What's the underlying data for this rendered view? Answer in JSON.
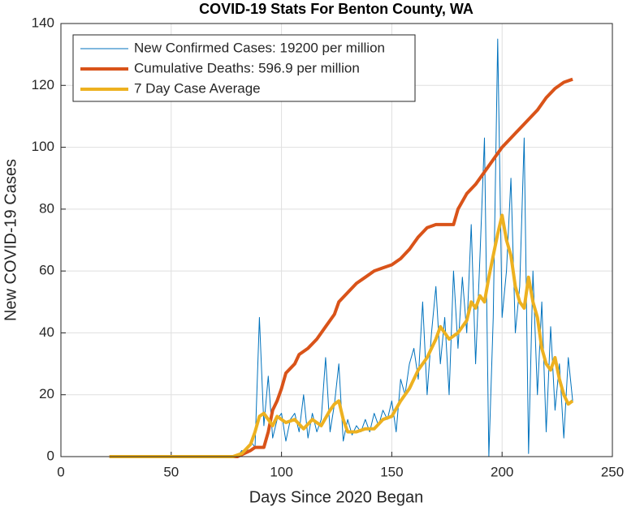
{
  "chart_data": {
    "type": "line",
    "title": "COVID-19 Stats For Benton County, WA",
    "xlabel": "Days Since 2020 Began",
    "ylabel": "New COVID-19 Cases",
    "xlim": [
      0,
      250
    ],
    "xticks": [
      0,
      50,
      100,
      150,
      200,
      250
    ],
    "ylim": [
      0,
      140
    ],
    "yticks": [
      0,
      20,
      40,
      60,
      80,
      100,
      120,
      140
    ],
    "grid": true,
    "legend": "northwest",
    "series": [
      {
        "name": "New Confirmed Cases: 19200 per million",
        "color": "#0072bd",
        "linewidth": 1,
        "x": [
          22,
          80,
          82,
          84,
          86,
          88,
          90,
          92,
          94,
          96,
          98,
          100,
          102,
          104,
          106,
          108,
          110,
          112,
          114,
          116,
          118,
          120,
          122,
          124,
          126,
          128,
          130,
          132,
          134,
          136,
          138,
          140,
          142,
          144,
          146,
          148,
          150,
          152,
          154,
          156,
          158,
          160,
          162,
          164,
          166,
          168,
          170,
          172,
          174,
          176,
          178,
          180,
          182,
          184,
          186,
          188,
          190,
          192,
          194,
          196,
          198,
          200,
          202,
          204,
          206,
          208,
          210,
          212,
          214,
          216,
          218,
          220,
          222,
          224,
          226,
          228,
          230,
          232
        ],
        "values": [
          0,
          0,
          2,
          1,
          5,
          3,
          45,
          10,
          26,
          6,
          12,
          14,
          5,
          12,
          14,
          8,
          20,
          6,
          14,
          8,
          12,
          32,
          8,
          17,
          30,
          5,
          12,
          7,
          10,
          8,
          12,
          8,
          14,
          10,
          15,
          12,
          18,
          8,
          25,
          20,
          30,
          35,
          25,
          50,
          20,
          40,
          55,
          30,
          45,
          20,
          60,
          35,
          58,
          40,
          75,
          30,
          65,
          103,
          0,
          45,
          135,
          45,
          60,
          90,
          40,
          55,
          103,
          1,
          60,
          20,
          50,
          8,
          42,
          15,
          30,
          6,
          32,
          18
        ]
      },
      {
        "name": "Cumulative Deaths: 596.9 per million",
        "color": "#d95319",
        "linewidth": 4,
        "x": [
          22,
          80,
          86,
          88,
          92,
          94,
          96,
          98,
          100,
          102,
          106,
          108,
          112,
          116,
          120,
          124,
          126,
          130,
          134,
          138,
          142,
          146,
          150,
          154,
          158,
          162,
          166,
          170,
          174,
          178,
          180,
          184,
          188,
          192,
          196,
          200,
          204,
          208,
          212,
          216,
          220,
          224,
          228,
          232
        ],
        "values": [
          0,
          0,
          2,
          3,
          3,
          8,
          15,
          18,
          22,
          27,
          30,
          33,
          35,
          38,
          42,
          46,
          50,
          53,
          56,
          58,
          60,
          61,
          62,
          64,
          67,
          71,
          74,
          75,
          75,
          75,
          80,
          85,
          88,
          92,
          96,
          100,
          103,
          106,
          109,
          112,
          116,
          119,
          121,
          122
        ]
      },
      {
        "name": "7 Day Case Average",
        "color": "#edb120",
        "linewidth": 4,
        "x": [
          22,
          78,
          82,
          86,
          88,
          90,
          92,
          94,
          96,
          98,
          100,
          102,
          106,
          110,
          114,
          118,
          122,
          124,
          126,
          128,
          130,
          134,
          138,
          142,
          146,
          150,
          154,
          158,
          162,
          166,
          170,
          172,
          176,
          180,
          184,
          186,
          188,
          190,
          192,
          194,
          196,
          198,
          200,
          202,
          204,
          206,
          208,
          210,
          212,
          214,
          216,
          218,
          220,
          222,
          224,
          226,
          228,
          230,
          232
        ],
        "values": [
          0,
          0,
          1,
          4,
          8,
          13,
          14,
          12,
          10,
          13,
          12,
          11,
          12,
          9,
          12,
          10,
          15,
          17,
          18,
          12,
          8,
          8,
          9,
          9,
          12,
          13,
          18,
          22,
          28,
          32,
          38,
          42,
          38,
          40,
          44,
          50,
          48,
          52,
          50,
          58,
          65,
          72,
          78,
          70,
          65,
          55,
          50,
          48,
          58,
          50,
          45,
          35,
          30,
          28,
          32,
          25,
          20,
          17,
          18
        ]
      }
    ]
  }
}
